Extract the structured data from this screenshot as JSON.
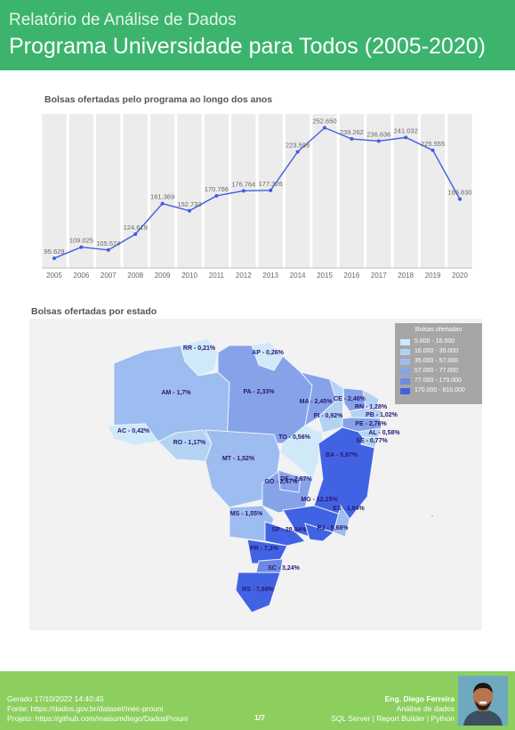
{
  "header": {
    "subtitle": "Relatório de Análise de Dados",
    "title": "Programa Universidade para Todos (2005-2020)"
  },
  "line_title": "Bolsas ofertadas pelo programa ao longo dos anos",
  "map_title": "Bolsas ofertadas por estado",
  "colors": {
    "header": "#3cb46e",
    "footer": "#8ccf5e",
    "line": "#3f5ee0",
    "range1": "#cfe9f8",
    "range2": "#b4d3f3",
    "range3": "#9dbcef",
    "range4": "#86a3ea",
    "range5": "#6d89e6",
    "range6": "#4163e3"
  },
  "chart_data": [
    {
      "type": "line",
      "title": "Bolsas ofertadas pelo programa ao longo dos anos",
      "x": [
        "2005",
        "2006",
        "2007",
        "2008",
        "2009",
        "2010",
        "2011",
        "2012",
        "2013",
        "2014",
        "2015",
        "2016",
        "2017",
        "2018",
        "2019",
        "2020"
      ],
      "values": [
        95629,
        109025,
        105574,
        124619,
        161369,
        152733,
        170766,
        176764,
        177326,
        223598,
        252650,
        239262,
        236636,
        241032,
        225555,
        166830
      ],
      "data_labels": [
        "95.629",
        "109.025",
        "105.574",
        "124.619",
        "161.369",
        "152.733",
        "170.766",
        "176.764",
        "177.326",
        "223.598",
        "252.650",
        "239.262",
        "236.636",
        "241.032",
        "225.555",
        "166.830"
      ],
      "ylim": [
        85000,
        265000
      ],
      "grid": "vertical bands",
      "legend": "none"
    },
    {
      "type": "choropleth",
      "title": "Bolsas ofertadas por estado",
      "legend_title": "Bolsas ofertadas",
      "legend_position": "top-right",
      "ranges": [
        "5.800 - 16.000",
        "16.000 - 35.000",
        "35.000 - 57.000",
        "57.000 - 77.000",
        "77.000 - 170.000",
        "170.000 - 810.000"
      ],
      "states": [
        {
          "label": "RR - 0,21%",
          "range": 0
        },
        {
          "label": "AP - 0,26%",
          "range": 0
        },
        {
          "label": "AM - 1,7%",
          "range": 2
        },
        {
          "label": "PA - 2,33%",
          "range": 3
        },
        {
          "label": "MA - 2,45%",
          "range": 3
        },
        {
          "label": "CE - 2,48%",
          "range": 3
        },
        {
          "label": "RN - 1,28%",
          "range": 1
        },
        {
          "label": "PB - 1,02%",
          "range": 1
        },
        {
          "label": "PI - 0,92%",
          "range": 1
        },
        {
          "label": "PE - 2,76%",
          "range": 3
        },
        {
          "label": "AL - 0,58%",
          "range": 1
        },
        {
          "label": "AC - 0,42%",
          "range": 0
        },
        {
          "label": "RO - 1,17%",
          "range": 1
        },
        {
          "label": "TO - 0,56%",
          "range": 0
        },
        {
          "label": "SE - 0,77%",
          "range": 1
        },
        {
          "label": "BA - 5,97%",
          "range": 5
        },
        {
          "label": "MT - 1,52%",
          "range": 2
        },
        {
          "label": "DF - 2,67%",
          "range": 3
        },
        {
          "label": "GO - 2,47%",
          "range": 3
        },
        {
          "label": "MG - 12,15%",
          "range": 5
        },
        {
          "label": "ES - 1,84%",
          "range": 2
        },
        {
          "label": "MS - 1,55%",
          "range": 2
        },
        {
          "label": "SP - 28,04%",
          "range": 5
        },
        {
          "label": "RJ - 5,68%",
          "range": 5
        },
        {
          "label": "PR - 7,3%",
          "range": 5
        },
        {
          "label": "SC - 3,24%",
          "range": 4
        },
        {
          "label": "RS - 7,69%",
          "range": 5
        }
      ]
    }
  ],
  "footer": {
    "generated": "Gerado 17/10/2022 14:40:45",
    "source": "Fonte: https://dados.gov.br/dataset/mec-prouni",
    "project": "Projeto: https://github.com/maisumdiego/DadosProuni",
    "page": "1/7",
    "author": "Eng. Diego Ferreira",
    "role": "Análise de dados",
    "tools": "SQL Server | Report Builder | Python"
  }
}
